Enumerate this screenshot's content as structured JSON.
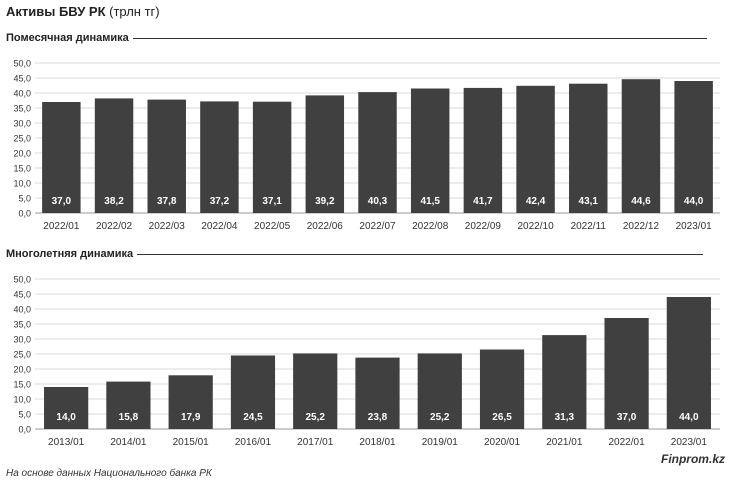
{
  "header": {
    "title_bold": "Активы БВУ РК",
    "title_unit": "(трлн тг)"
  },
  "footer": {
    "source": "На основе данных Национального банка РК",
    "brand": "Finprom.kz"
  },
  "colors": {
    "bar": "#404040",
    "grid": "#d9d9d9",
    "label": "#ffffff"
  },
  "chart_data": [
    {
      "type": "bar",
      "title": "Помесячная динамика",
      "categories": [
        "2022/01",
        "2022/02",
        "2022/03",
        "2022/04",
        "2022/05",
        "2022/06",
        "2022/07",
        "2022/08",
        "2022/09",
        "2022/10",
        "2022/11",
        "2022/12",
        "2023/01"
      ],
      "values": [
        37.0,
        38.2,
        37.8,
        37.2,
        37.1,
        39.2,
        40.3,
        41.5,
        41.7,
        42.4,
        43.1,
        44.6,
        44.0
      ],
      "value_labels": [
        "37,0",
        "38,2",
        "37,8",
        "37,2",
        "37,1",
        "39,2",
        "40,3",
        "41,5",
        "41,7",
        "42,4",
        "43,1",
        "44,6",
        "44,0"
      ],
      "yticks": [
        "0,0",
        "5,0",
        "10,0",
        "15,0",
        "20,0",
        "25,0",
        "30,0",
        "35,0",
        "40,0",
        "45,0",
        "50,0"
      ],
      "ylim": [
        0,
        50
      ],
      "grid": true
    },
    {
      "type": "bar",
      "title": "Многолетняя динамика",
      "categories": [
        "2013/01",
        "2014/01",
        "2015/01",
        "2016/01",
        "2017/01",
        "2018/01",
        "2019/01",
        "2020/01",
        "2021/01",
        "2022/01",
        "2023/01"
      ],
      "values": [
        14.0,
        15.8,
        17.9,
        24.5,
        25.2,
        23.8,
        25.2,
        26.5,
        31.3,
        37.0,
        44.0
      ],
      "value_labels": [
        "14,0",
        "15,8",
        "17,9",
        "24,5",
        "25,2",
        "23,8",
        "25,2",
        "26,5",
        "31,3",
        "37,0",
        "44,0"
      ],
      "yticks": [
        "0,0",
        "5,0",
        "10,0",
        "15,0",
        "20,0",
        "25,0",
        "30,0",
        "35,0",
        "40,0",
        "45,0",
        "50,0"
      ],
      "ylim": [
        0,
        50
      ],
      "grid": true
    }
  ]
}
